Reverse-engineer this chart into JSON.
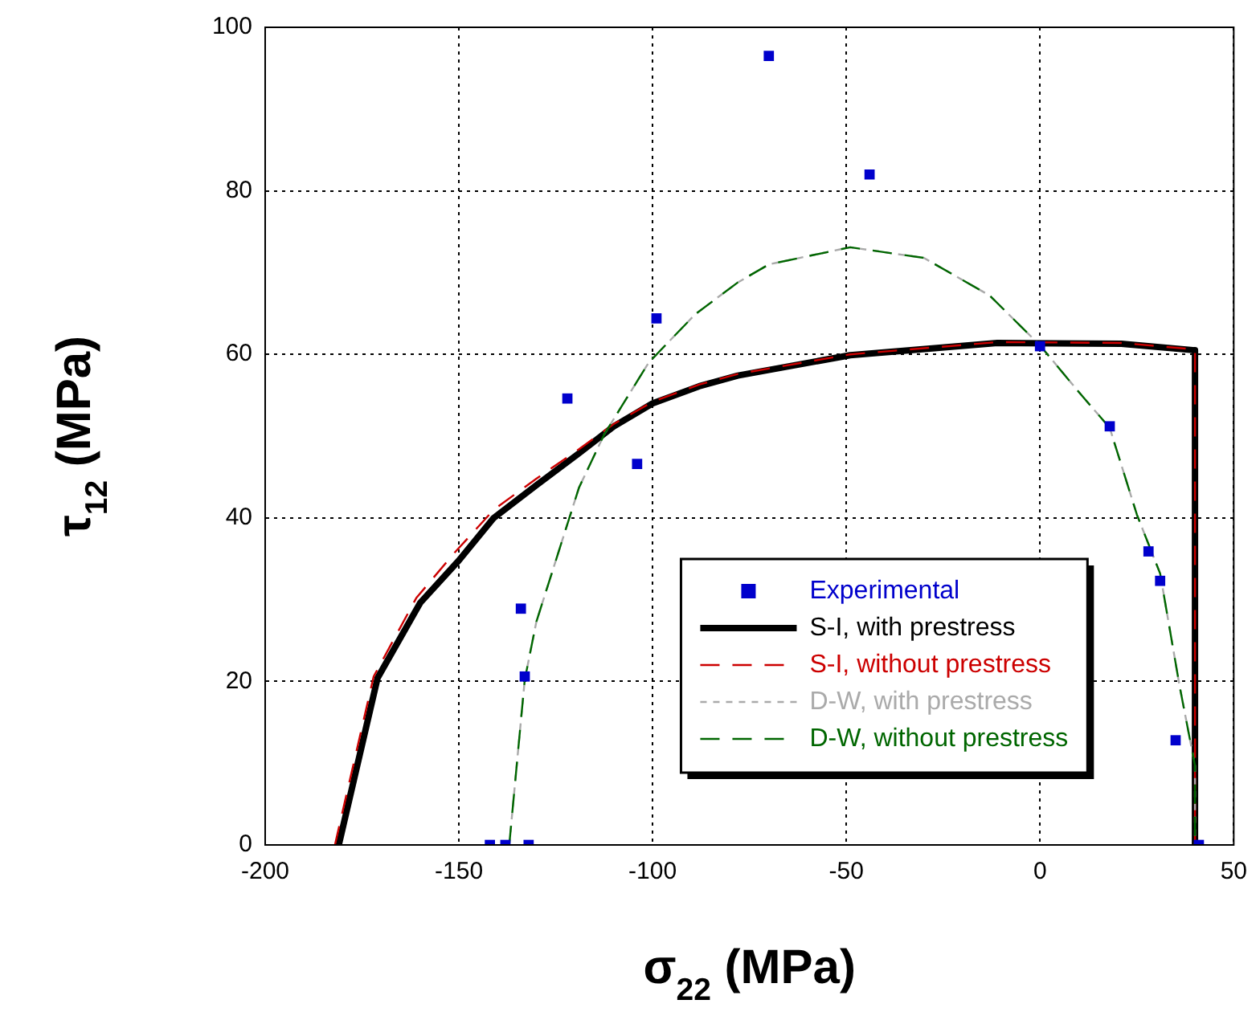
{
  "chart_data": {
    "type": "line",
    "xlabel": "σ$_{22}$ (MPa)",
    "ylabel": "τ$_{12}$ (MPa)",
    "xlim": [
      -200,
      50
    ],
    "xticks": [
      -200,
      -150,
      -100,
      -50,
      0,
      50
    ],
    "ylim": [
      0,
      100
    ],
    "yticks": [
      0,
      20,
      40,
      60,
      80,
      100
    ],
    "grid": true,
    "legend": "bottom right",
    "series": [
      {
        "name": "Experimental",
        "type": "scatter",
        "marker": "square",
        "color": "#0000cc",
        "x": [
          -70,
          -44,
          -99,
          -122,
          -104,
          -134,
          -133,
          -142,
          -138,
          -132,
          0,
          18,
          28,
          31,
          35,
          41
        ],
        "values": [
          96.5,
          82,
          64.4,
          54.6,
          46.6,
          28.9,
          20.6,
          0,
          0,
          0,
          61,
          51.2,
          35.9,
          32.3,
          12.8,
          0
        ]
      },
      {
        "name": "S-I, with prestress",
        "type": "line",
        "marker": "none",
        "line_style": "solid",
        "color": "#000000",
        "x": [
          -181,
          -171,
          -160,
          -150,
          -141,
          -130,
          -119,
          -110,
          -100,
          -88,
          -78,
          -49,
          -11,
          21,
          40,
          40
        ],
        "values": [
          0,
          20.4,
          29.6,
          34.8,
          40,
          44,
          47.9,
          51.2,
          54,
          56.1,
          57.4,
          59.9,
          61.4,
          61.3,
          60.5,
          0
        ]
      },
      {
        "name": "S-I, without prestress",
        "type": "line",
        "marker": "none",
        "line_style": "dashed",
        "color": "#cc0000",
        "x": [
          -182,
          -172,
          -161,
          -151,
          -141,
          -130,
          -119,
          -110,
          -100,
          -88,
          -78,
          -49,
          -11,
          21,
          40,
          40
        ],
        "values": [
          0,
          20.6,
          30.2,
          35.8,
          41,
          44.8,
          48.4,
          51.5,
          54.2,
          56.3,
          57.6,
          60,
          61.5,
          61.4,
          60.6,
          0
        ]
      },
      {
        "name": "D-W, with prestress",
        "type": "line",
        "marker": "none",
        "line_style": "dotted",
        "color": "#aaaaaa",
        "x": [
          -137,
          -133,
          -130,
          -119,
          -112.5,
          -101,
          -89,
          -78,
          -70,
          -49,
          -30,
          -13,
          0,
          10,
          18,
          25,
          31,
          36,
          40,
          40
        ],
        "values": [
          0,
          20.2,
          27.3,
          43.7,
          50.2,
          59,
          64.9,
          68.8,
          71,
          73.1,
          71.8,
          67.2,
          61.1,
          55.4,
          51,
          40.4,
          33.2,
          19.5,
          9.7,
          0
        ]
      },
      {
        "name": "D-W, without prestress",
        "type": "line",
        "marker": "none",
        "line_style": "dashed",
        "color": "#006600",
        "x": [
          -137,
          -133,
          -130,
          -119,
          -112.5,
          -101,
          -89,
          -78,
          -70,
          -49,
          -30,
          -13,
          0,
          10,
          18,
          25,
          31,
          36,
          40,
          40
        ],
        "values": [
          0,
          20.2,
          27.3,
          43.7,
          50.2,
          59,
          64.9,
          68.8,
          71,
          73.1,
          71.8,
          67.2,
          61.1,
          55.4,
          51,
          40.4,
          33.2,
          19.5,
          9.7,
          0
        ]
      }
    ]
  }
}
